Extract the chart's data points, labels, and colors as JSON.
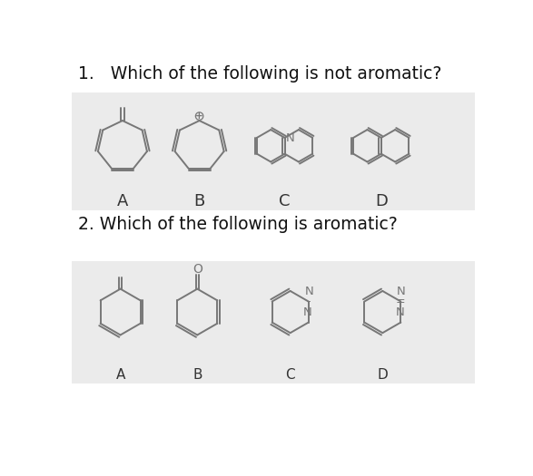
{
  "title1": "1.   Which of the following is not aromatic?",
  "title2": "2. Which of the following is aromatic?",
  "bg_color": "#ffffff",
  "panel_bg": "#ebebeb",
  "line_color": "#777777",
  "text_color": "#111111",
  "label_color": "#333333",
  "q1_labels": [
    "A",
    "B",
    "C",
    "D"
  ],
  "q2_labels": [
    "A",
    "B",
    "C",
    "D"
  ],
  "figsize": [
    5.87,
    5.25
  ],
  "dpi": 100
}
